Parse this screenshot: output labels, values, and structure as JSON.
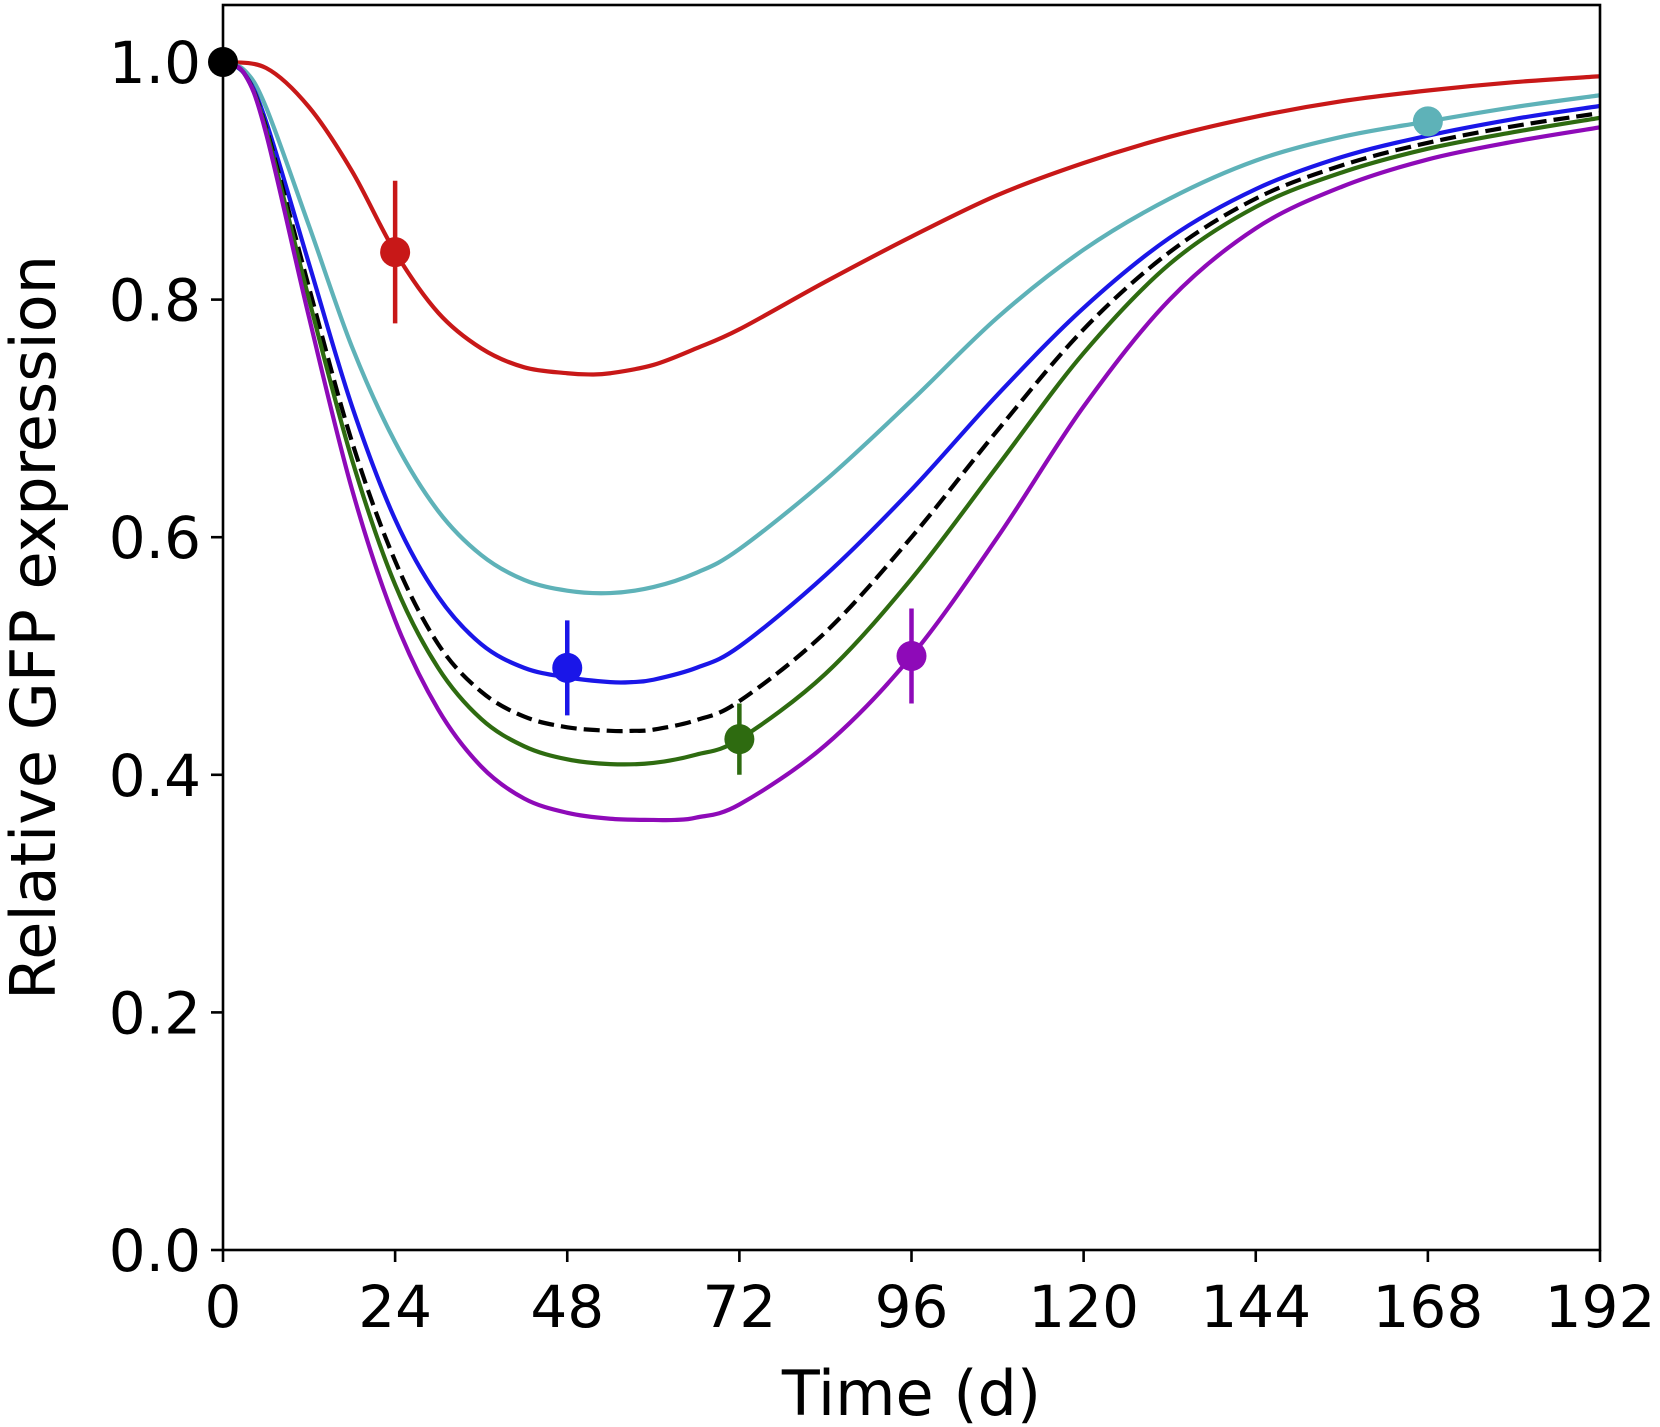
{
  "chart_data": {
    "type": "line",
    "title": "",
    "xlabel": "Time (d)",
    "ylabel": "Relative GFP expression",
    "xlim": [
      0,
      192
    ],
    "ylim": [
      0,
      1.05
    ],
    "xticks": [
      0,
      24,
      48,
      72,
      96,
      120,
      144,
      168,
      192
    ],
    "xtick_labels": [
      "0",
      "24",
      "48",
      "72",
      "96",
      "120",
      "144",
      "168",
      "192"
    ],
    "yticks": [
      0,
      0.2,
      0.4,
      0.6,
      0.8,
      1.0
    ],
    "ytick_labels": [
      "0.0",
      "0.2",
      "0.4",
      "0.6",
      "0.8",
      "1.0"
    ],
    "grid": false,
    "series": [
      {
        "name": "red",
        "color": "#c81818",
        "dash": false,
        "x": [
          0,
          6,
          12,
          18,
          24,
          30,
          36,
          42,
          48,
          51,
          54,
          60,
          66,
          72,
          84,
          96,
          108,
          120,
          132,
          144,
          156,
          168,
          180,
          192
        ],
        "y": [
          1.0,
          0.995,
          0.962,
          0.908,
          0.84,
          0.789,
          0.759,
          0.743,
          0.738,
          0.737,
          0.738,
          0.745,
          0.759,
          0.775,
          0.815,
          0.853,
          0.888,
          0.915,
          0.937,
          0.954,
          0.967,
          0.976,
          0.983,
          0.988
        ],
        "points": [
          {
            "x": 24,
            "y": 0.84,
            "err": 0.06
          }
        ]
      },
      {
        "name": "cyan",
        "color": "#5eb2b8",
        "dash": false,
        "x": [
          0,
          3,
          6,
          12,
          18,
          24,
          30,
          36,
          42,
          48,
          54,
          60,
          66,
          72,
          84,
          96,
          108,
          120,
          132,
          144,
          156,
          168,
          180,
          192
        ],
        "y": [
          1.0,
          0.993,
          0.962,
          0.862,
          0.76,
          0.68,
          0.622,
          0.585,
          0.564,
          0.555,
          0.553,
          0.558,
          0.57,
          0.59,
          0.648,
          0.715,
          0.785,
          0.842,
          0.885,
          0.917,
          0.937,
          0.95,
          0.962,
          0.972
        ],
        "points": [
          {
            "x": 168,
            "y": 0.95,
            "err": 0
          }
        ]
      },
      {
        "name": "blue",
        "color": "#1a16e8",
        "dash": false,
        "x": [
          0,
          3,
          6,
          12,
          18,
          24,
          30,
          36,
          42,
          48,
          54,
          57,
          60,
          66,
          72,
          84,
          96,
          108,
          120,
          132,
          144,
          156,
          168,
          180,
          192
        ],
        "y": [
          1.0,
          0.99,
          0.95,
          0.83,
          0.71,
          0.615,
          0.55,
          0.51,
          0.49,
          0.482,
          0.478,
          0.478,
          0.48,
          0.49,
          0.508,
          0.568,
          0.64,
          0.72,
          0.793,
          0.852,
          0.893,
          0.92,
          0.938,
          0.952,
          0.963
        ],
        "points": [
          {
            "x": 48,
            "y": 0.49,
            "err": 0.04
          }
        ]
      },
      {
        "name": "black-dashed",
        "color": "#000000",
        "dash": true,
        "x": [
          0,
          3,
          6,
          12,
          18,
          24,
          30,
          36,
          42,
          48,
          54,
          57,
          60,
          66,
          72,
          84,
          96,
          108,
          120,
          132,
          144,
          156,
          168,
          180,
          192
        ],
        "y": [
          1.0,
          0.99,
          0.945,
          0.81,
          0.68,
          0.58,
          0.51,
          0.47,
          0.449,
          0.44,
          0.437,
          0.437,
          0.438,
          0.446,
          0.462,
          0.52,
          0.6,
          0.69,
          0.775,
          0.84,
          0.885,
          0.913,
          0.932,
          0.946,
          0.957
        ],
        "points": [
          {
            "x": 0,
            "y": 1.0,
            "err": 0
          }
        ]
      },
      {
        "name": "green",
        "color": "#2e6b10",
        "dash": false,
        "x": [
          0,
          3,
          6,
          12,
          18,
          24,
          30,
          36,
          42,
          48,
          54,
          60,
          66,
          72,
          84,
          96,
          108,
          120,
          132,
          144,
          156,
          168,
          180,
          192
        ],
        "y": [
          1.0,
          0.99,
          0.943,
          0.8,
          0.665,
          0.56,
          0.49,
          0.447,
          0.424,
          0.413,
          0.409,
          0.41,
          0.417,
          0.43,
          0.485,
          0.565,
          0.66,
          0.755,
          0.83,
          0.878,
          0.907,
          0.927,
          0.941,
          0.953
        ],
        "points": [
          {
            "x": 72,
            "y": 0.43,
            "err": 0.03
          }
        ]
      },
      {
        "name": "purple",
        "color": "#8e0ab8",
        "dash": false,
        "x": [
          0,
          3,
          6,
          12,
          18,
          24,
          30,
          36,
          42,
          48,
          54,
          60,
          63,
          66,
          72,
          84,
          96,
          108,
          120,
          132,
          144,
          156,
          168,
          180,
          192
        ],
        "y": [
          1.0,
          0.99,
          0.94,
          0.785,
          0.64,
          0.53,
          0.455,
          0.407,
          0.38,
          0.368,
          0.363,
          0.362,
          0.362,
          0.364,
          0.375,
          0.425,
          0.5,
          0.6,
          0.71,
          0.8,
          0.86,
          0.895,
          0.918,
          0.933,
          0.945
        ],
        "points": [
          {
            "x": 96,
            "y": 0.5,
            "err": 0.04
          }
        ]
      }
    ]
  }
}
